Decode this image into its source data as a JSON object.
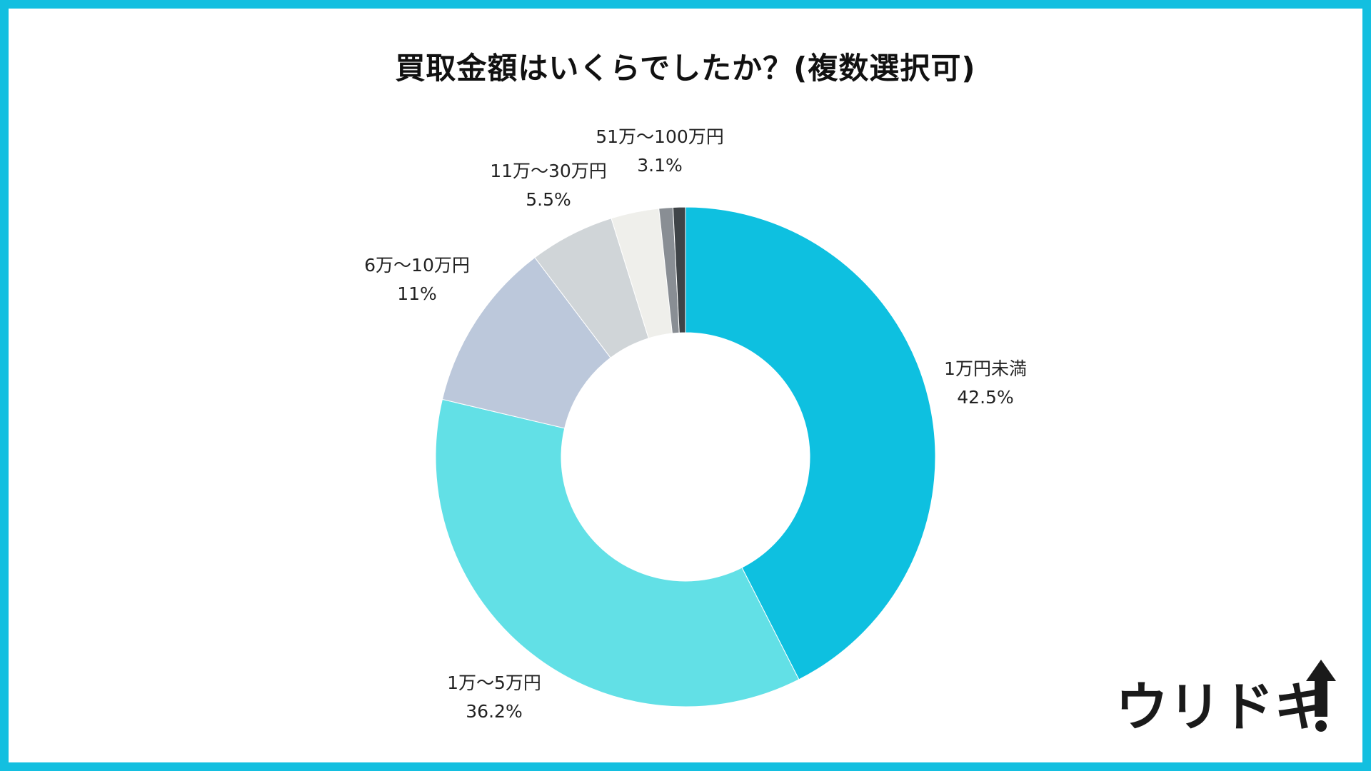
{
  "chart_data": {
    "type": "pie",
    "title": "買取金額はいくらでしたか？(複数選択可)",
    "categories": [
      "1万円未満",
      "1万〜5万円",
      "6万〜10万円",
      "11万〜30万円",
      "51万〜100万円",
      "",
      ""
    ],
    "series": [
      {
        "values": [
          42.5,
          36.2,
          11.0,
          5.5,
          3.1,
          0.9,
          0.8
        ]
      }
    ],
    "value_labels": [
      "42.5%",
      "36.2%",
      "11%",
      "5.5%",
      "3.1%",
      "",
      ""
    ],
    "colors": [
      "#0ec0e0",
      "#62e0e6",
      "#bcc8db",
      "#d0d5d8",
      "#efefeb",
      "#898e94",
      "#3f4448"
    ],
    "donut": true,
    "legend": "none"
  },
  "logo": {
    "text": "ウリドキ"
  },
  "colors": {
    "frame": "#13bfe0"
  }
}
